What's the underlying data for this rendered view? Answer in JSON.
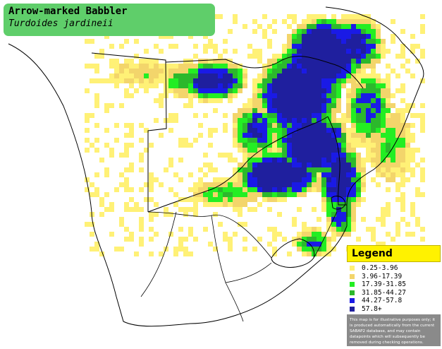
{
  "header": {
    "species_name": "Arrow-marked Babbler",
    "scientific_name": "Turdoides jardineii"
  },
  "legend": {
    "title": "Legend",
    "classes": [
      {
        "label": "0.25-3.96",
        "color": "#fff176"
      },
      {
        "label": "3.96-17.39",
        "color": "#f3d56b"
      },
      {
        "label": "17.39-31.85",
        "color": "#23ee23"
      },
      {
        "label": "31.85-44.27",
        "color": "#2cb82c"
      },
      {
        "label": "44.27-57.8",
        "color": "#1a1ae6"
      },
      {
        "label": "57.8+",
        "color": "#1f1f9e"
      }
    ],
    "disclaimer": "This map is for illustrative purposes only; it is produced automatically from the current SABAP2 database, and may contain datapoints which will subsequently be removed during checking operations."
  },
  "map": {
    "land_color": "#ffffff",
    "border_color": "#000000"
  }
}
